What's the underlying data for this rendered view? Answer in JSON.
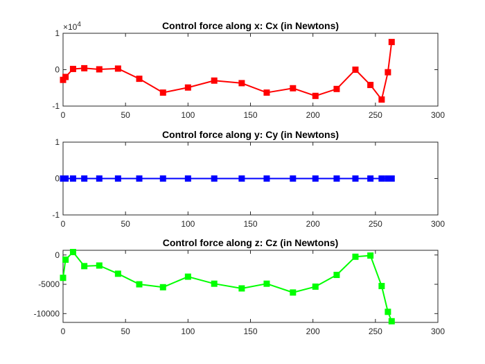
{
  "chart_data": [
    {
      "type": "line",
      "title": "Control force along x: Cx (in Newtons)",
      "xlabel": "",
      "ylabel": "",
      "xlim": [
        0,
        300
      ],
      "ylim": [
        -1,
        1
      ],
      "xticks": [
        0,
        50,
        100,
        150,
        200,
        250,
        300
      ],
      "yticks": [
        -1,
        0,
        1
      ],
      "yticklabels": [
        "-1",
        "0",
        "1"
      ],
      "exponent_label": "×10",
      "exponent_power": "4",
      "grid": false,
      "color": "#ff0000",
      "series": [
        {
          "x": [
            0,
            2,
            8,
            17,
            29,
            44,
            61,
            80,
            100,
            121,
            143,
            163,
            184,
            202,
            219,
            234,
            246,
            255,
            260,
            263
          ],
          "y": [
            -0.28,
            -0.2,
            0.02,
            0.04,
            0.01,
            0.03,
            -0.25,
            -0.63,
            -0.49,
            -0.3,
            -0.37,
            -0.63,
            -0.51,
            -0.72,
            -0.53,
            0.0,
            -0.42,
            -0.82,
            -0.07,
            0.76
          ]
        }
      ]
    },
    {
      "type": "line",
      "title": "Control force along y: Cy (in Newtons)",
      "xlabel": "",
      "ylabel": "",
      "xlim": [
        0,
        300
      ],
      "ylim": [
        -1,
        1
      ],
      "xticks": [
        0,
        50,
        100,
        150,
        200,
        250,
        300
      ],
      "yticks": [
        -1,
        0,
        1
      ],
      "yticklabels": [
        "-1",
        "0",
        "1"
      ],
      "grid": false,
      "color": "#0000ff",
      "series": [
        {
          "x": [
            0,
            2,
            8,
            17,
            29,
            44,
            61,
            80,
            100,
            121,
            143,
            163,
            184,
            202,
            219,
            234,
            246,
            255,
            260,
            263
          ],
          "y": [
            0,
            0,
            0,
            0,
            0,
            0,
            0,
            0,
            0,
            0,
            0,
            0,
            0,
            0,
            0,
            0,
            0,
            0,
            0,
            0
          ]
        }
      ]
    },
    {
      "type": "line",
      "title": "Control force along z: Cz (in Newtons)",
      "xlabel": "",
      "ylabel": "",
      "xlim": [
        0,
        300
      ],
      "ylim": [
        -11500,
        800
      ],
      "xticks": [
        0,
        50,
        100,
        150,
        200,
        250,
        300
      ],
      "yticks": [
        -10000,
        -5000,
        0
      ],
      "yticklabels": [
        "-10000",
        "-5000",
        "0"
      ],
      "grid": false,
      "color": "#00ff00",
      "series": [
        {
          "x": [
            0,
            2,
            8,
            17,
            29,
            44,
            61,
            80,
            100,
            121,
            143,
            163,
            184,
            202,
            219,
            234,
            246,
            255,
            260,
            263
          ],
          "y": [
            -3900,
            -800,
            500,
            -1900,
            -1800,
            -3200,
            -5000,
            -5500,
            -3700,
            -4900,
            -5700,
            -4900,
            -6400,
            -5400,
            -3400,
            -300,
            -100,
            -5300,
            -9700,
            -11300
          ]
        }
      ]
    }
  ]
}
